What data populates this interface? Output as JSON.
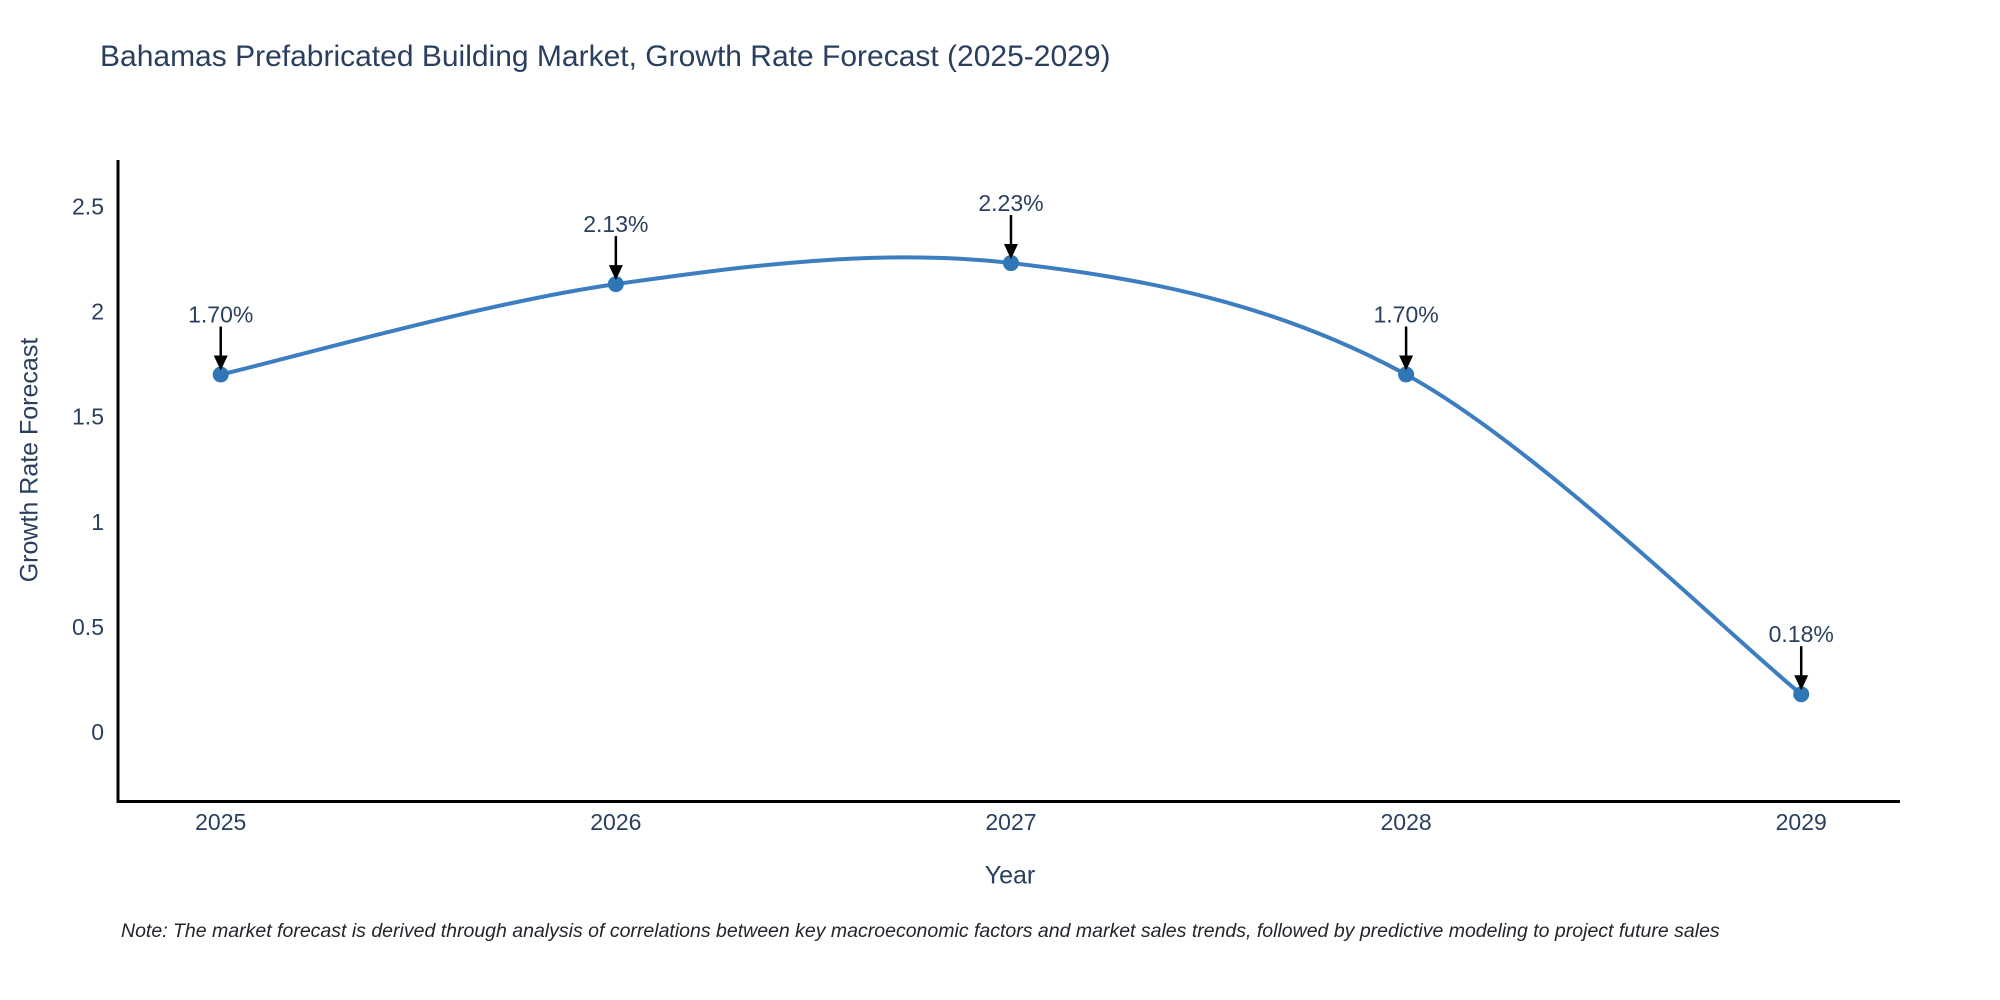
{
  "chart_data": {
    "type": "line",
    "curve": "spline",
    "title": "Bahamas Prefabricated Building Market, Growth Rate Forecast (2025-2029)",
    "xlabel": "Year",
    "ylabel": "Growth Rate Forecast",
    "x": [
      2025,
      2026,
      2027,
      2028,
      2029
    ],
    "y": [
      1.7,
      2.13,
      2.23,
      1.7,
      0.18
    ],
    "point_labels": [
      "1.70%",
      "2.13%",
      "2.23%",
      "1.70%",
      "0.18%"
    ],
    "x_ticks": [
      "2025",
      "2026",
      "2027",
      "2028",
      "2029"
    ],
    "y_ticks": [
      0,
      0.5,
      1,
      1.5,
      2,
      2.5
    ],
    "xlim": [
      2024.74,
      2029.25
    ],
    "ylim": [
      -0.33,
      2.72
    ],
    "grid": false,
    "legend": "none",
    "line_color": "#3c7ebf",
    "marker_color": "#2e76b5",
    "axis_color": "#000000",
    "text_color": "#2a3f5f",
    "annotation_arrow_color": "#000000",
    "note": "Note: The market forecast is derived through analysis of correlations between key macroeconomic factors and market sales trends, followed by predictive modeling to project future sales"
  }
}
